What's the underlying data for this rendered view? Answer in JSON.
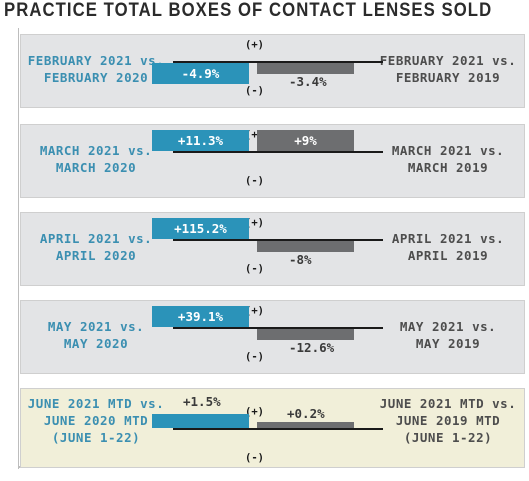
{
  "title": "PRACTICE TOTAL BOXES OF CONTACT LENSES SOLD",
  "colors": {
    "current": "#2b93b9",
    "previous": "#6d6e70",
    "label_current": "#3b8fb1",
    "highlight_bg": "#f1efd9",
    "panel_bg": "#e3e4e6"
  },
  "signs": {
    "positive": "(+)",
    "negative": "(-)"
  },
  "chart_data": {
    "type": "bar",
    "orientation": "diverging-horizontal",
    "series": [
      {
        "name": "vs. 2020",
        "color": "#2b93b9"
      },
      {
        "name": "vs. 2019",
        "color": "#6d6e70"
      }
    ],
    "rows": [
      {
        "left_label": [
          "FEBRUARY 2021 vs.",
          "FEBRUARY 2020"
        ],
        "right_label": [
          "FEBRUARY 2021 vs.",
          "FEBRUARY 2019"
        ],
        "current": -4.9,
        "current_text": "-4.9%",
        "previous": -3.4,
        "previous_text": "-3.4%",
        "highlight": false
      },
      {
        "left_label": [
          "MARCH 2021 vs.",
          "MARCH 2020"
        ],
        "right_label": [
          "MARCH 2021 vs.",
          "MARCH 2019"
        ],
        "current": 11.3,
        "current_text": "+11.3%",
        "previous": 9,
        "previous_text": "+9%",
        "highlight": false
      },
      {
        "left_label": [
          "APRIL 2021 vs.",
          "APRIL 2020"
        ],
        "right_label": [
          "APRIL 2021 vs.",
          "APRIL 2019"
        ],
        "current": 115.2,
        "current_text": "+115.2%",
        "previous": -8,
        "previous_text": "-8%",
        "highlight": false
      },
      {
        "left_label": [
          "MAY 2021 vs.",
          "MAY 2020"
        ],
        "right_label": [
          "MAY 2021 vs.",
          "MAY 2019"
        ],
        "current": 39.1,
        "current_text": "+39.1%",
        "previous": -12.6,
        "previous_text": "-12.6%",
        "highlight": false
      },
      {
        "left_label": [
          "JUNE 2021 MTD vs.",
          "JUNE 2020 MTD",
          "(JUNE 1-22)"
        ],
        "right_label": [
          "JUNE 2021 MTD vs.",
          "JUNE 2019 MTD",
          "(JUNE 1-22)"
        ],
        "current": 1.5,
        "current_text": "+1.5%",
        "previous": 0.2,
        "previous_text": "+0.2%",
        "highlight": true
      }
    ]
  }
}
